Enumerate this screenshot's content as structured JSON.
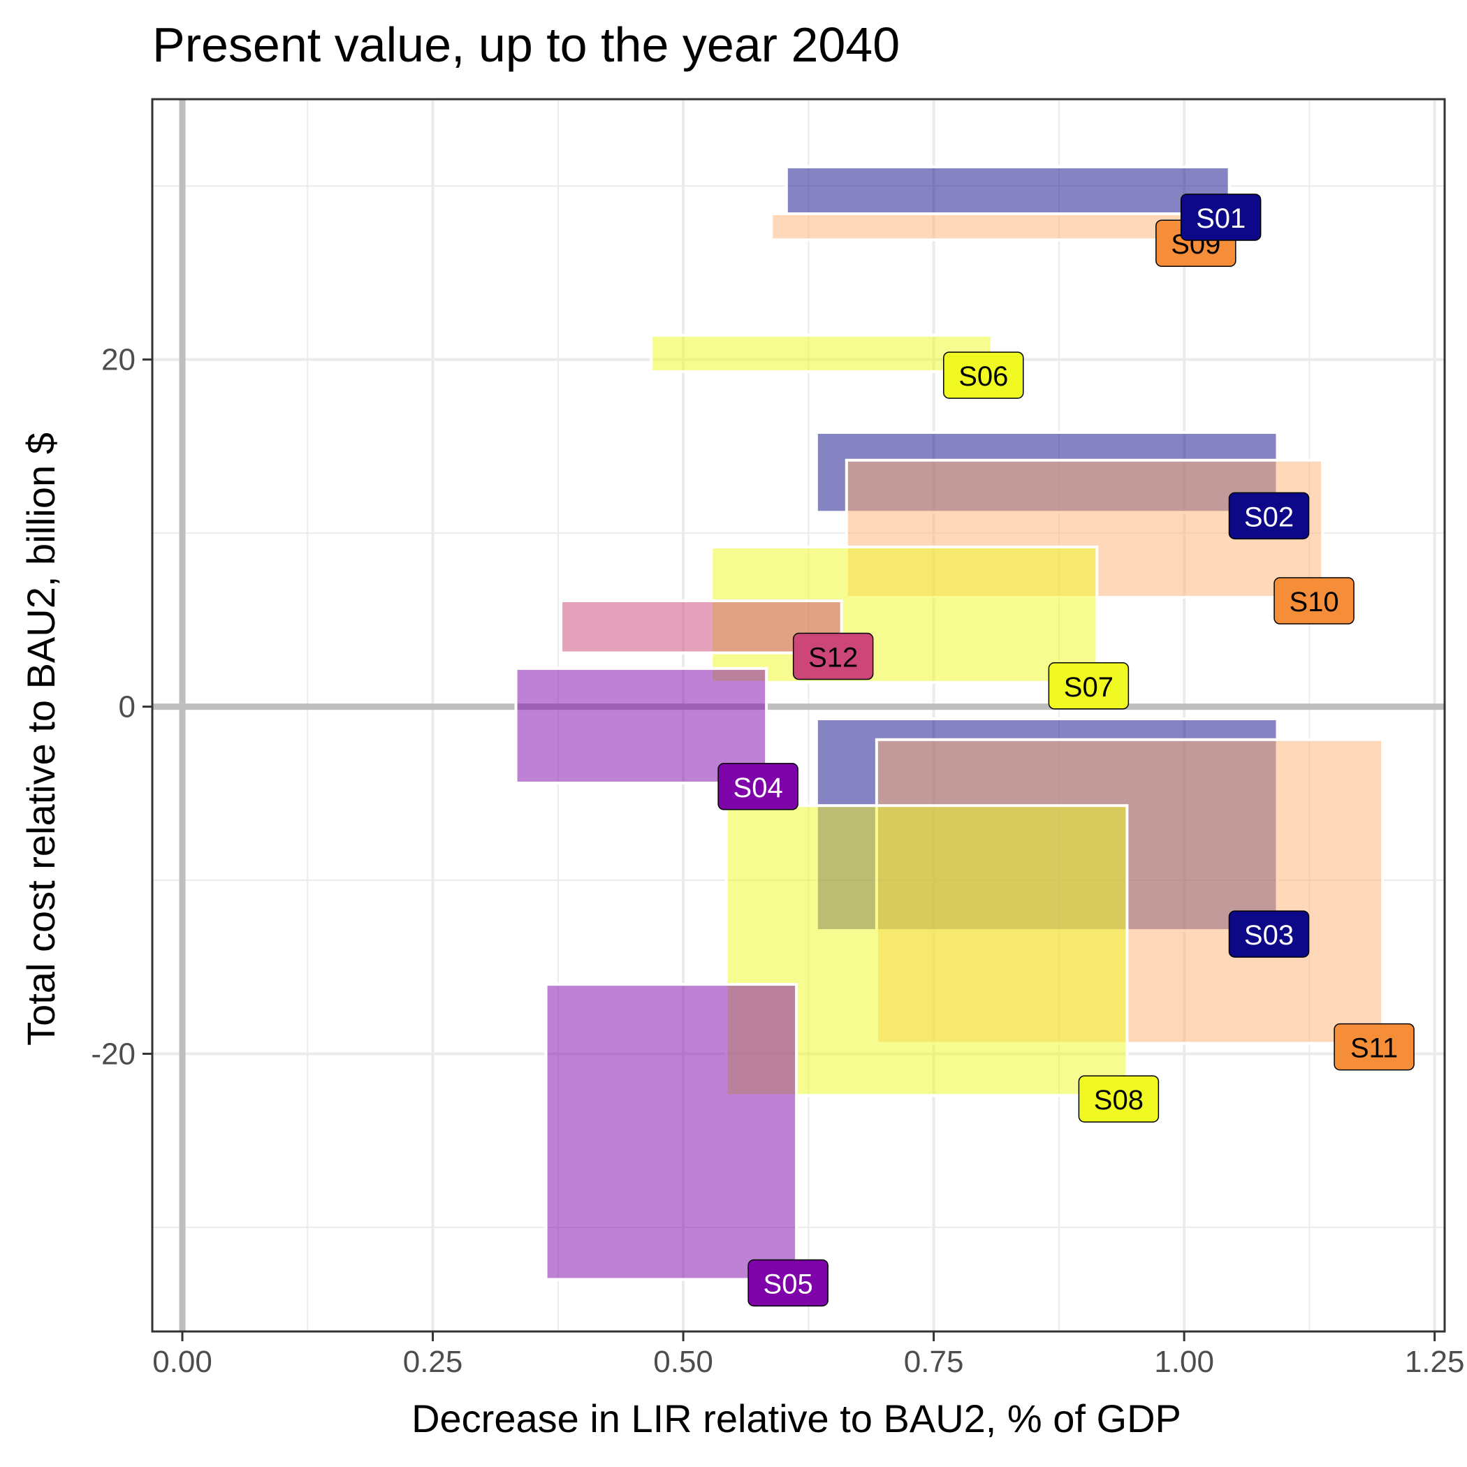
{
  "chart_data": {
    "type": "rect",
    "title": "Present value, up to the year 2040",
    "xlabel": "Decrease in LIR relative to BAU2, % of GDP",
    "ylabel": "Total cost relative to BAU2, billion $",
    "xlim": [
      -0.03,
      1.26
    ],
    "ylim": [
      -36,
      35
    ],
    "x_ticks": [
      0.0,
      0.25,
      0.5,
      0.75,
      1.0,
      1.25
    ],
    "x_tick_labels": [
      "0.00",
      "0.25",
      "0.50",
      "0.75",
      "1.00",
      "1.25"
    ],
    "y_ticks": [
      -20,
      0,
      20
    ],
    "y_tick_labels": [
      "-20",
      "0",
      "20"
    ],
    "grid": true,
    "reference_lines": {
      "x": 0,
      "y": 0
    },
    "rects": [
      {
        "label": "S09",
        "xmin": 0.588,
        "xmax": 1.02,
        "ymin": 26.9,
        "ymax": 28.4,
        "fill": "#fdb272",
        "label_bg": "#f68d38",
        "label_fg": "#000000"
      },
      {
        "label": "S01",
        "xmin": 0.603,
        "xmax": 1.045,
        "ymin": 28.4,
        "ymax": 31.1,
        "fill": "#0d0887",
        "label_bg": "#0d0887",
        "label_fg": "#ffffff"
      },
      {
        "label": "S06",
        "xmin": 0.468,
        "xmax": 0.808,
        "ymin": 19.3,
        "ymax": 21.4,
        "fill": "#f0f921",
        "label_bg": "#f0f921",
        "label_fg": "#000000"
      },
      {
        "label": "S02",
        "xmin": 0.633,
        "xmax": 1.093,
        "ymin": 11.2,
        "ymax": 15.8,
        "fill": "#0d0887",
        "label_bg": "#0d0887",
        "label_fg": "#ffffff"
      },
      {
        "label": "S10",
        "xmin": 0.663,
        "xmax": 1.138,
        "ymin": 6.3,
        "ymax": 14.2,
        "fill": "#fdb272",
        "label_bg": "#f68d38",
        "label_fg": "#000000"
      },
      {
        "label": "S07",
        "xmin": 0.528,
        "xmax": 0.913,
        "ymin": 1.4,
        "ymax": 9.2,
        "fill": "#f0f921",
        "label_bg": "#f0f921",
        "label_fg": "#000000"
      },
      {
        "label": "S12",
        "xmin": 0.378,
        "xmax": 0.658,
        "ymin": 3.1,
        "ymax": 6.1,
        "fill": "#cc4778",
        "label_bg": "#cc4778",
        "label_fg": "#000000"
      },
      {
        "label": "S04",
        "xmin": 0.333,
        "xmax": 0.583,
        "ymin": -4.4,
        "ymax": 2.2,
        "fill": "#7e03a8",
        "label_bg": "#7e03a8",
        "label_fg": "#ffffff"
      },
      {
        "label": "S03",
        "xmin": 0.633,
        "xmax": 1.093,
        "ymin": -12.9,
        "ymax": -0.7,
        "fill": "#0d0887",
        "label_bg": "#0d0887",
        "label_fg": "#ffffff"
      },
      {
        "label": "S11",
        "xmin": 0.693,
        "xmax": 1.198,
        "ymin": -19.4,
        "ymax": -1.9,
        "fill": "#fdb272",
        "label_bg": "#f68d38",
        "label_fg": "#000000"
      },
      {
        "label": "S08",
        "xmin": 0.543,
        "xmax": 0.943,
        "ymin": -22.4,
        "ymax": -5.7,
        "fill": "#f0f921",
        "label_bg": "#f0f921",
        "label_fg": "#000000"
      },
      {
        "label": "S05",
        "xmin": 0.363,
        "xmax": 0.613,
        "ymin": -33.0,
        "ymax": -16.0,
        "fill": "#7e03a8",
        "label_bg": "#7e03a8",
        "label_fg": "#ffffff"
      }
    ]
  }
}
